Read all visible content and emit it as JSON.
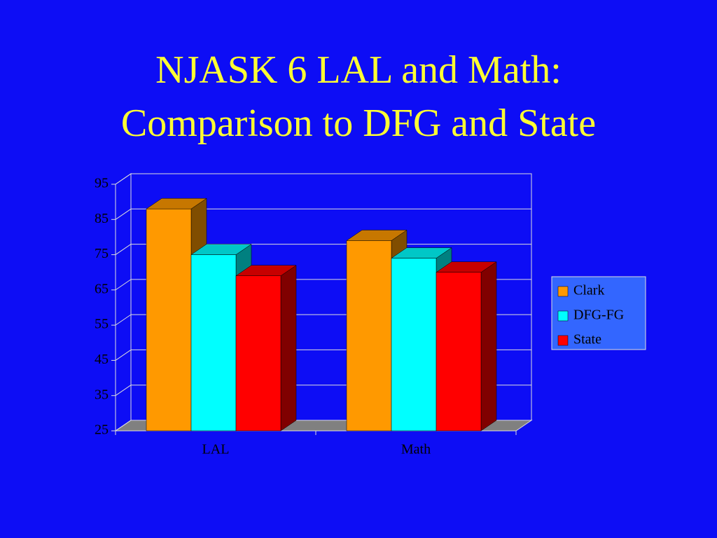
{
  "chart_data": {
    "type": "bar3d",
    "title": "NJASK 6 LAL and Math: Comparison to DFG and State",
    "categories": [
      "LAL",
      "Math"
    ],
    "series": [
      {
        "name": "Clark",
        "color": "#ff9900",
        "values": [
          88,
          79
        ]
      },
      {
        "name": "DFG-FG",
        "color": "#00ffff",
        "values": [
          75,
          74
        ]
      },
      {
        "name": "State",
        "color": "#ff0000",
        "values": [
          69,
          70
        ]
      }
    ],
    "ylim": [
      25,
      95
    ],
    "yticks": [
      25,
      35,
      45,
      55,
      65,
      75,
      85,
      95
    ],
    "grid": true,
    "legend": "right"
  }
}
